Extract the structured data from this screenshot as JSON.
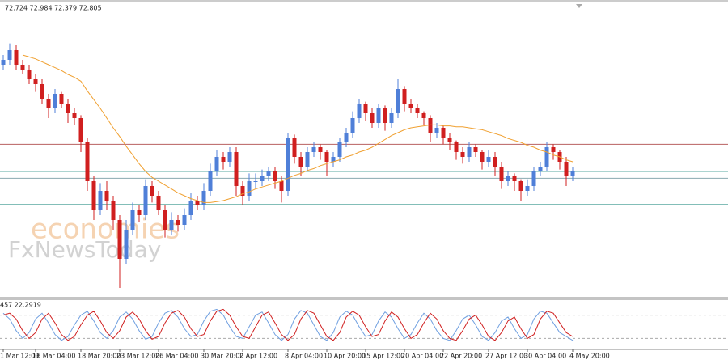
{
  "chart_data": [
    {
      "type": "candlestick",
      "header": "72.724 72.984 72.379 72.805",
      "watermarks": [
        "economies",
        "FxNewsToday"
      ],
      "categories": [
        "1 Mar 12:00",
        null,
        null,
        null,
        null,
        "16 Mar 04:00",
        null,
        null,
        null,
        null,
        null,
        null,
        "18 Mar 20:00",
        null,
        null,
        null,
        null,
        null,
        "23 Mar 12:00",
        null,
        null,
        null,
        null,
        null,
        "26 Mar 04:00",
        null,
        null,
        null,
        null,
        null,
        null,
        "30 Mar 20:00",
        null,
        null,
        null,
        null,
        null,
        "2 Apr 12:00",
        null,
        null,
        null,
        null,
        null,
        null,
        "8 Apr 04:00",
        null,
        null,
        null,
        null,
        null,
        "10 Apr 20:00",
        null,
        null,
        null,
        null,
        null,
        "15 Apr 12:00",
        null,
        null,
        null,
        null,
        null,
        "20 Apr 04:00",
        null,
        null,
        null,
        null,
        null,
        "22 Apr 20:00",
        null,
        null,
        null,
        null,
        null,
        null,
        "27 Apr 12:00",
        null,
        null,
        null,
        null,
        null,
        "30 Apr 04:00",
        null,
        null,
        null,
        null,
        null,
        null,
        "4 May 20:00"
      ],
      "ohlc": [
        [
          73.9,
          74.0,
          73.85,
          73.95
        ],
        [
          73.95,
          74.12,
          73.9,
          74.05
        ],
        [
          74.05,
          74.1,
          73.85,
          73.9
        ],
        [
          73.9,
          73.95,
          73.8,
          73.85
        ],
        [
          73.85,
          73.9,
          73.7,
          73.75
        ],
        [
          73.75,
          73.8,
          73.62,
          73.7
        ],
        [
          73.7,
          73.75,
          73.5,
          73.55
        ],
        [
          73.55,
          73.6,
          73.35,
          73.45
        ],
        [
          73.45,
          73.65,
          73.4,
          73.6
        ],
        [
          73.6,
          73.62,
          73.45,
          73.5
        ],
        [
          73.5,
          73.55,
          73.3,
          73.4
        ],
        [
          73.4,
          73.45,
          73.28,
          73.35
        ],
        [
          73.35,
          73.38,
          73.0,
          73.1
        ],
        [
          73.1,
          73.15,
          72.6,
          72.7
        ],
        [
          72.7,
          72.75,
          72.3,
          72.4
        ],
        [
          72.4,
          72.68,
          72.35,
          72.6
        ],
        [
          72.6,
          72.7,
          72.4,
          72.5
        ],
        [
          72.5,
          72.55,
          72.2,
          72.3
        ],
        [
          72.3,
          72.35,
          71.6,
          71.9
        ],
        [
          71.9,
          72.3,
          71.85,
          72.2
        ],
        [
          72.2,
          72.48,
          72.15,
          72.4
        ],
        [
          72.4,
          72.45,
          72.28,
          72.35
        ],
        [
          72.35,
          72.72,
          72.3,
          72.65
        ],
        [
          72.65,
          72.7,
          72.48,
          72.55
        ],
        [
          72.55,
          72.6,
          72.35,
          72.4
        ],
        [
          72.4,
          72.45,
          72.12,
          72.2
        ],
        [
          72.2,
          72.38,
          72.15,
          72.3
        ],
        [
          72.3,
          72.35,
          72.18,
          72.25
        ],
        [
          72.25,
          72.42,
          72.2,
          72.35
        ],
        [
          72.35,
          72.58,
          72.3,
          72.5
        ],
        [
          72.5,
          72.55,
          72.4,
          72.45
        ],
        [
          72.45,
          72.68,
          72.4,
          72.6
        ],
        [
          72.6,
          72.88,
          72.55,
          72.8
        ],
        [
          72.8,
          73.02,
          72.75,
          72.95
        ],
        [
          72.95,
          73.0,
          72.82,
          72.9
        ],
        [
          72.9,
          73.05,
          72.85,
          73.0
        ],
        [
          73.0,
          73.05,
          72.55,
          72.65
        ],
        [
          72.65,
          72.7,
          72.45,
          72.55
        ],
        [
          72.55,
          72.78,
          72.5,
          72.7
        ],
        [
          72.7,
          72.78,
          72.62,
          72.7
        ],
        [
          72.7,
          72.82,
          72.65,
          72.75
        ],
        [
          72.75,
          72.85,
          72.7,
          72.8
        ],
        [
          72.8,
          72.85,
          72.62,
          72.7
        ],
        [
          72.7,
          72.75,
          72.48,
          72.6
        ],
        [
          72.6,
          73.2,
          72.55,
          73.15
        ],
        [
          73.15,
          73.18,
          72.88,
          72.95
        ],
        [
          72.95,
          73.0,
          72.75,
          72.85
        ],
        [
          72.85,
          73.05,
          72.8,
          73.0
        ],
        [
          73.0,
          73.1,
          72.95,
          73.05
        ],
        [
          73.05,
          73.08,
          72.92,
          73.0
        ],
        [
          73.0,
          73.02,
          72.75,
          72.9
        ],
        [
          72.9,
          73.0,
          72.85,
          72.95
        ],
        [
          72.95,
          73.15,
          72.9,
          73.1
        ],
        [
          73.1,
          73.25,
          73.05,
          73.2
        ],
        [
          73.2,
          73.42,
          73.15,
          73.35
        ],
        [
          73.35,
          73.55,
          73.3,
          73.5
        ],
        [
          73.5,
          73.52,
          73.32,
          73.4
        ],
        [
          73.4,
          73.45,
          73.25,
          73.3
        ],
        [
          73.3,
          73.5,
          73.25,
          73.45
        ],
        [
          73.45,
          73.48,
          73.22,
          73.3
        ],
        [
          73.3,
          73.45,
          73.25,
          73.4
        ],
        [
          73.4,
          73.75,
          73.35,
          73.65
        ],
        [
          73.65,
          73.68,
          73.42,
          73.5
        ],
        [
          73.5,
          73.55,
          73.4,
          73.45
        ],
        [
          73.45,
          73.5,
          73.35,
          73.4
        ],
        [
          73.4,
          73.42,
          73.28,
          73.35
        ],
        [
          73.35,
          73.38,
          73.1,
          73.2
        ],
        [
          73.2,
          73.3,
          73.15,
          73.25
        ],
        [
          73.25,
          73.28,
          73.08,
          73.15
        ],
        [
          73.15,
          73.2,
          73.02,
          73.1
        ],
        [
          73.1,
          73.12,
          72.92,
          73.0
        ],
        [
          73.0,
          73.05,
          72.88,
          72.95
        ],
        [
          72.95,
          73.1,
          72.9,
          73.05
        ],
        [
          73.05,
          73.08,
          72.95,
          73.0
        ],
        [
          73.0,
          73.02,
          72.82,
          72.9
        ],
        [
          72.9,
          73.02,
          72.85,
          72.95
        ],
        [
          72.95,
          73.0,
          72.75,
          72.85
        ],
        [
          72.85,
          72.9,
          72.62,
          72.7
        ],
        [
          72.7,
          72.8,
          72.65,
          72.75
        ],
        [
          72.75,
          72.78,
          72.6,
          72.7
        ],
        [
          72.7,
          72.72,
          72.5,
          72.6
        ],
        [
          72.6,
          72.72,
          72.55,
          72.65
        ],
        [
          72.65,
          72.85,
          72.6,
          72.8
        ],
        [
          72.8,
          72.9,
          72.75,
          72.85
        ],
        [
          72.85,
          73.1,
          72.8,
          73.05
        ],
        [
          73.05,
          73.08,
          72.92,
          73.0
        ],
        [
          73.0,
          73.02,
          72.82,
          72.9
        ],
        [
          72.9,
          72.95,
          72.65,
          72.75
        ],
        [
          72.75,
          72.85,
          72.7,
          72.8
        ]
      ],
      "up_color": "#4f7fd8",
      "down_color": "#d01f1f",
      "ma": {
        "color": "#f0a030",
        "values": [
          null,
          null,
          null,
          74.0,
          73.98,
          73.96,
          73.93,
          73.9,
          73.87,
          73.84,
          73.8,
          73.77,
          73.73,
          73.63,
          73.54,
          73.45,
          73.35,
          73.25,
          73.16,
          73.06,
          72.97,
          72.88,
          72.8,
          72.74,
          72.7,
          72.66,
          72.62,
          72.58,
          72.55,
          72.52,
          72.5,
          72.48,
          72.48,
          72.49,
          72.5,
          72.52,
          72.54,
          72.57,
          72.59,
          72.62,
          72.64,
          72.66,
          72.68,
          72.7,
          72.73,
          72.76,
          72.78,
          72.81,
          72.83,
          72.86,
          72.88,
          72.9,
          72.92,
          72.95,
          72.97,
          73.0,
          73.02,
          73.05,
          73.09,
          73.13,
          73.17,
          73.2,
          73.23,
          73.25,
          73.26,
          73.27,
          73.28,
          73.28,
          73.27,
          73.27,
          73.26,
          73.26,
          73.25,
          73.24,
          73.23,
          73.21,
          73.19,
          73.17,
          73.14,
          73.12,
          73.1,
          73.07,
          73.05,
          73.02,
          73.0,
          72.97,
          72.95,
          72.92,
          72.9
        ]
      },
      "hlines": [
        {
          "value": 73.08,
          "color": "#b86060"
        },
        {
          "value": 72.8,
          "color": "#5aa9a0"
        },
        {
          "value": 72.73,
          "color": "#8aaab0"
        },
        {
          "value": 72.46,
          "color": "#5aa9a0"
        }
      ],
      "ylim": [
        71.5,
        74.5
      ]
    },
    {
      "type": "line",
      "label": "457 22.2919",
      "series": [
        {
          "color": "#6f9fe0",
          "values": [
            85,
            70,
            40,
            20,
            35,
            70,
            85,
            60,
            30,
            15,
            25,
            55,
            80,
            90,
            65,
            35,
            20,
            40,
            75,
            88,
            70,
            40,
            18,
            25,
            60,
            85,
            92,
            75,
            45,
            25,
            30,
            65,
            90,
            95,
            80,
            50,
            25,
            20,
            50,
            80,
            88,
            60,
            30,
            15,
            30,
            70,
            92,
            85,
            55,
            25,
            15,
            35,
            75,
            90,
            80,
            50,
            25,
            30,
            65,
            88,
            75,
            45,
            20,
            30,
            60,
            85,
            70,
            40,
            20,
            15,
            40,
            70,
            80,
            55,
            25,
            15,
            35,
            65,
            75,
            45,
            20,
            30,
            70,
            90,
            85,
            60,
            35,
            25,
            15
          ]
        },
        {
          "color": "#d02020",
          "values": [
            80,
            85,
            70,
            40,
            20,
            35,
            70,
            85,
            60,
            30,
            15,
            25,
            55,
            80,
            90,
            65,
            35,
            20,
            40,
            75,
            88,
            70,
            40,
            18,
            25,
            60,
            85,
            92,
            75,
            45,
            25,
            30,
            65,
            90,
            95,
            80,
            50,
            25,
            20,
            50,
            80,
            88,
            60,
            30,
            15,
            30,
            70,
            92,
            85,
            55,
            25,
            15,
            35,
            75,
            90,
            80,
            50,
            25,
            30,
            65,
            88,
            75,
            45,
            20,
            30,
            60,
            85,
            70,
            40,
            20,
            15,
            40,
            70,
            80,
            55,
            25,
            15,
            35,
            65,
            75,
            45,
            20,
            30,
            70,
            90,
            85,
            60,
            35,
            25
          ]
        }
      ],
      "ylim": [
        0,
        100
      ],
      "levels": [
        80,
        20
      ]
    }
  ]
}
